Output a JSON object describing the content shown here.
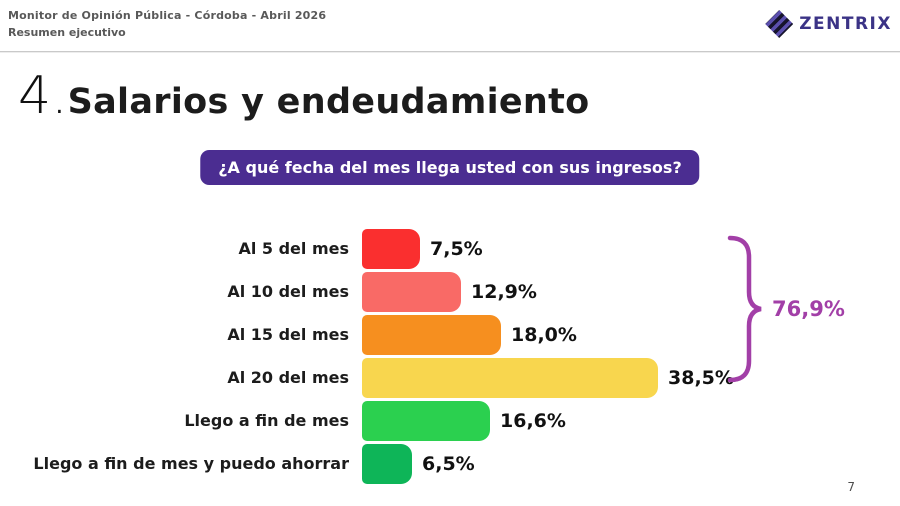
{
  "header": {
    "line1": "Monitor de Opinión Pública - Córdoba - Abril 2026",
    "line2": "Resumen ejecutivo",
    "brand": "ZENTRIX",
    "brand_color": "#3b3386"
  },
  "slide": {
    "number_prefix": "4.",
    "title": "Salarios y endeudamiento",
    "page_number": "7"
  },
  "question_badge": {
    "text": "¿A qué fecha del mes llega usted con sus ingresos?",
    "bg_color": "#4b2d91",
    "text_color": "#ffffff"
  },
  "chart_data": {
    "type": "bar",
    "orientation": "horizontal",
    "title": "¿A qué fecha del mes llega usted con sus ingresos?",
    "xlabel": "",
    "ylabel": "",
    "xlim": [
      0,
      40
    ],
    "grid": false,
    "categories": [
      "Al 5 del mes",
      "Al 10 del mes",
      "Al 15 del mes",
      "Al 20 del mes",
      "Llego a fin de mes",
      "Llego a fin de mes y puedo ahorrar"
    ],
    "values": [
      7.5,
      12.9,
      18.0,
      38.5,
      16.6,
      6.5
    ],
    "value_labels": [
      "7,5%",
      "12,9%",
      "18,0%",
      "38,5%",
      "16,6%",
      "6,5%"
    ],
    "bar_colors": [
      "#fa2f2f",
      "#f96a66",
      "#f68f1f",
      "#f8d64e",
      "#2bd04f",
      "#0eb558"
    ],
    "annotation": {
      "label": "76,9%",
      "color": "#a23fa7",
      "groups_categories": [
        "Al 5 del mes",
        "Al 10 del mes",
        "Al 15 del mes",
        "Al 20 del mes"
      ]
    }
  }
}
